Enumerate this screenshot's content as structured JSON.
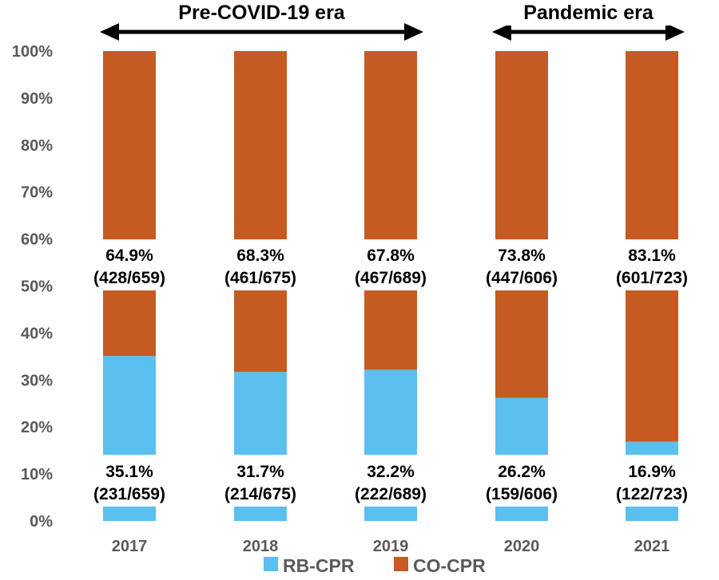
{
  "chart_data": {
    "type": "bar",
    "stacked": true,
    "categories": [
      "2017",
      "2018",
      "2019",
      "2020",
      "2021"
    ],
    "series": [
      {
        "name": "RB-CPR",
        "color": "#5bbfef",
        "values": [
          35.1,
          31.7,
          32.2,
          26.2,
          16.9
        ],
        "labels": [
          "35.1%",
          "31.7%",
          "32.2%",
          "26.2%",
          "16.9%"
        ],
        "counts": [
          "(231/659)",
          "(214/675)",
          "(222/689)",
          "(159/606)",
          "(122/723)"
        ]
      },
      {
        "name": "CO-CPR",
        "color": "#c55a22",
        "values": [
          64.9,
          68.3,
          67.8,
          73.8,
          83.1
        ],
        "labels": [
          "64.9%",
          "68.3%",
          "67.8%",
          "73.8%",
          "83.1%"
        ],
        "counts": [
          "(428/659)",
          "(461/675)",
          "(467/689)",
          "(447/606)",
          "(601/723)"
        ]
      }
    ],
    "ylim": [
      0,
      100
    ],
    "y_ticks": [
      "0%",
      "10%",
      "20%",
      "30%",
      "40%",
      "50%",
      "60%",
      "70%",
      "80%",
      "90%",
      "100%"
    ],
    "eras": [
      {
        "label": "Pre-COVID-19 era",
        "from": "2017",
        "to": "2019"
      },
      {
        "label": "Pandemic era",
        "from": "2020",
        "to": "2021"
      }
    ],
    "legend_position": "bottom",
    "grid": false,
    "xlabel": "",
    "ylabel": ""
  }
}
